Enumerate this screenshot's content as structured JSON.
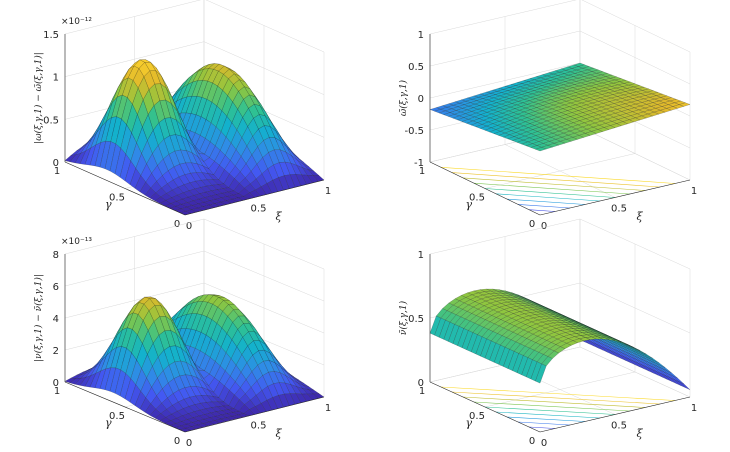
{
  "chart_data": [
    {
      "type": "surface",
      "panel": "top-left",
      "xlabel": "ξ",
      "ylabel": "γ",
      "zlabel": "|ω(ξ,γ,1) − ω̃(ξ,γ,1)|",
      "exponent": "×10⁻¹²",
      "xticks": [
        "0",
        "0.5",
        "1"
      ],
      "yticks": [
        "0",
        "0.5",
        "1"
      ],
      "zticks": [
        "0",
        "0.5",
        "1",
        "1.5"
      ],
      "xlim": [
        0,
        1
      ],
      "ylim": [
        0,
        1
      ],
      "zlim": [
        0,
        1.5
      ],
      "peak_values": [
        1.45,
        1.2
      ],
      "grid": true,
      "colormap": "parula"
    },
    {
      "type": "surface",
      "panel": "top-right",
      "xlabel": "ξ",
      "ylabel": "γ",
      "zlabel": "ω̃(ξ,γ,1)",
      "xticks": [
        "0",
        "0.5",
        "1"
      ],
      "yticks": [
        "0",
        "0.5",
        "1"
      ],
      "zticks": [
        "-1",
        "-0.5",
        "0",
        "0.5",
        "1"
      ],
      "xlim": [
        0,
        1
      ],
      "ylim": [
        0,
        1
      ],
      "zlim": [
        -1,
        1
      ],
      "surface_range": [
        -0.2,
        0.2
      ],
      "contour_on_floor": true,
      "grid": true,
      "colormap": "parula"
    },
    {
      "type": "surface",
      "panel": "bottom-left",
      "xlabel": "ξ",
      "ylabel": "γ",
      "zlabel": "|ν(ξ,γ,1) − ν̃(ξ,γ,1)|",
      "exponent": "×10⁻¹³",
      "xticks": [
        "0",
        "0.5",
        "1"
      ],
      "yticks": [
        "0",
        "0.5",
        "1"
      ],
      "zticks": [
        "0",
        "2",
        "4",
        "6",
        "8"
      ],
      "xlim": [
        0,
        1
      ],
      "ylim": [
        0,
        1
      ],
      "zlim": [
        0,
        8
      ],
      "peak_values": [
        6.0,
        5.2
      ],
      "grid": true,
      "colormap": "parula"
    },
    {
      "type": "surface",
      "panel": "bottom-right",
      "xlabel": "ξ",
      "ylabel": "γ",
      "zlabel": "ν̃(ξ,γ,1)",
      "xticks": [
        "0",
        "0.5",
        "1"
      ],
      "yticks": [
        "0",
        "0.5",
        "1"
      ],
      "zticks": [
        "0",
        "0.5",
        "1"
      ],
      "xlim": [
        0,
        1
      ],
      "ylim": [
        0,
        1
      ],
      "zlim": [
        0,
        1
      ],
      "surface_range": [
        0,
        1
      ],
      "contour_on_floor": true,
      "grid": true,
      "colormap": "parula"
    }
  ],
  "colors": {
    "axes": "#262626",
    "grid": "#d9d9d9",
    "mesh": "#1a1a1a",
    "parula": [
      "#3e26a8",
      "#4358f2",
      "#2f8ce6",
      "#13b1cd",
      "#2fc192",
      "#8fc63f",
      "#e1b92b",
      "#fcd12d",
      "#f9fb0e"
    ]
  }
}
